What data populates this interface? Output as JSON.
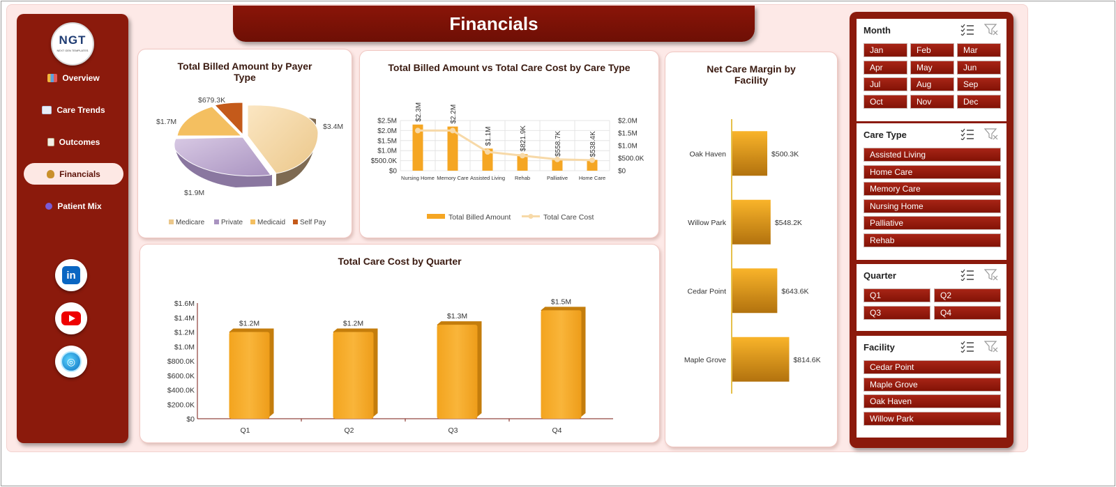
{
  "header": {
    "title": "Financials"
  },
  "logo": {
    "text": "NGT",
    "sub": "NEXT GEN TEMPLATES"
  },
  "nav": [
    {
      "label": "Overview",
      "icon": "bar-chart-icon"
    },
    {
      "label": "Care Trends",
      "icon": "trend-chart-icon"
    },
    {
      "label": "Outcomes",
      "icon": "clipboard-icon"
    },
    {
      "label": "Financials",
      "icon": "money-bag-icon",
      "active": true
    },
    {
      "label": "Patient Mix",
      "icon": "people-icon"
    }
  ],
  "social": [
    "linkedin-icon",
    "youtube-icon",
    "globe-icon"
  ],
  "colors": {
    "maroon": "#8b1a0c",
    "orange": "#f5a623",
    "pink_bg": "#fde9e7",
    "medicare": "#f7d9a8",
    "private": "#c6b3d6",
    "medicaid": "#f4bf60",
    "selfpay": "#c45a1a"
  },
  "payer_chart": {
    "title": "Total Billed Amount by Payer Type",
    "chart_data": {
      "type": "pie",
      "title": "Total Billed Amount by Payer Type",
      "labels": [
        "Medicare",
        "Private",
        "Medicaid",
        "Self Pay"
      ],
      "values": [
        3.4,
        1.9,
        1.7,
        0.6793
      ],
      "value_labels": [
        "$3.4M",
        "$1.9M",
        "$1.7M",
        "$679.3K"
      ],
      "legend": "bottom"
    }
  },
  "care_type_chart": {
    "title": "Total Billed Amount vs Total Care Cost by Care Type",
    "chart_data": {
      "type": "bar",
      "title": "Total Billed Amount vs Total Care Cost by Care Type",
      "categories": [
        "Nursing Home",
        "Memory Care",
        "Assisted Living",
        "Rehab",
        "Palliative",
        "Home Care"
      ],
      "series": [
        {
          "name": "Total Billed Amount",
          "type": "bar",
          "values": [
            2.3,
            2.2,
            1.1,
            0.8219,
            0.5587,
            0.5384
          ],
          "value_labels": [
            "$2.3M",
            "$2.2M",
            "$1.1M",
            "$821.9K",
            "$558.7K",
            "$538.4K"
          ],
          "axis": "left"
        },
        {
          "name": "Total Care Cost",
          "type": "line",
          "values": [
            1.6,
            1.6,
            0.75,
            0.6,
            0.45,
            0.42
          ],
          "axis": "right"
        }
      ],
      "left_ticks": [
        "$0",
        "$500.0K",
        "$1.0M",
        "$1.5M",
        "$2.0M",
        "$2.5M"
      ],
      "right_ticks": [
        "$0",
        "$500.0K",
        "$1.0M",
        "$1.5M",
        "$2.0M"
      ],
      "ylim_left": [
        0,
        2.5
      ],
      "ylim_right": [
        0,
        2.0
      ],
      "legend": "bottom",
      "grid": true
    }
  },
  "facility_chart": {
    "title": "Net Care Margin by Facility",
    "chart_data": {
      "type": "bar",
      "orientation": "horizontal",
      "title": "Net Care Margin by Facility",
      "categories": [
        "Oak Haven",
        "Willow Park",
        "Cedar Point",
        "Maple Grove"
      ],
      "values": [
        500.3,
        548.2,
        643.6,
        814.6
      ],
      "value_labels": [
        "$500.3K",
        "$548.2K",
        "$643.6K",
        "$814.6K"
      ],
      "xlim": [
        0,
        1000
      ]
    }
  },
  "quarter_chart": {
    "title": "Total Care Cost by Quarter",
    "chart_data": {
      "type": "bar",
      "title": "Total Care Cost by Quarter",
      "categories": [
        "Q1",
        "Q2",
        "Q3",
        "Q4"
      ],
      "values": [
        1.2,
        1.2,
        1.3,
        1.5
      ],
      "value_labels": [
        "$1.2M",
        "$1.2M",
        "$1.3M",
        "$1.5M"
      ],
      "ticks": [
        "$0",
        "$200.0K",
        "$400.0K",
        "$600.0K",
        "$800.0K",
        "$1.0M",
        "$1.2M",
        "$1.4M",
        "$1.6M"
      ],
      "ylim": [
        0,
        1.6
      ]
    }
  },
  "slicers": {
    "month": {
      "title": "Month",
      "items": [
        "Jan",
        "Feb",
        "Mar",
        "Apr",
        "May",
        "Jun",
        "Jul",
        "Aug",
        "Sep",
        "Oct",
        "Nov",
        "Dec"
      ]
    },
    "care_type": {
      "title": "Care Type",
      "items": [
        "Assisted Living",
        "Home Care",
        "Memory Care",
        "Nursing Home",
        "Palliative",
        "Rehab"
      ]
    },
    "quarter": {
      "title": "Quarter",
      "items": [
        "Q1",
        "Q2",
        "Q3",
        "Q4"
      ]
    },
    "facility": {
      "title": "Facility",
      "items": [
        "Cedar Point",
        "Maple Grove",
        "Oak Haven",
        "Willow Park"
      ]
    }
  }
}
